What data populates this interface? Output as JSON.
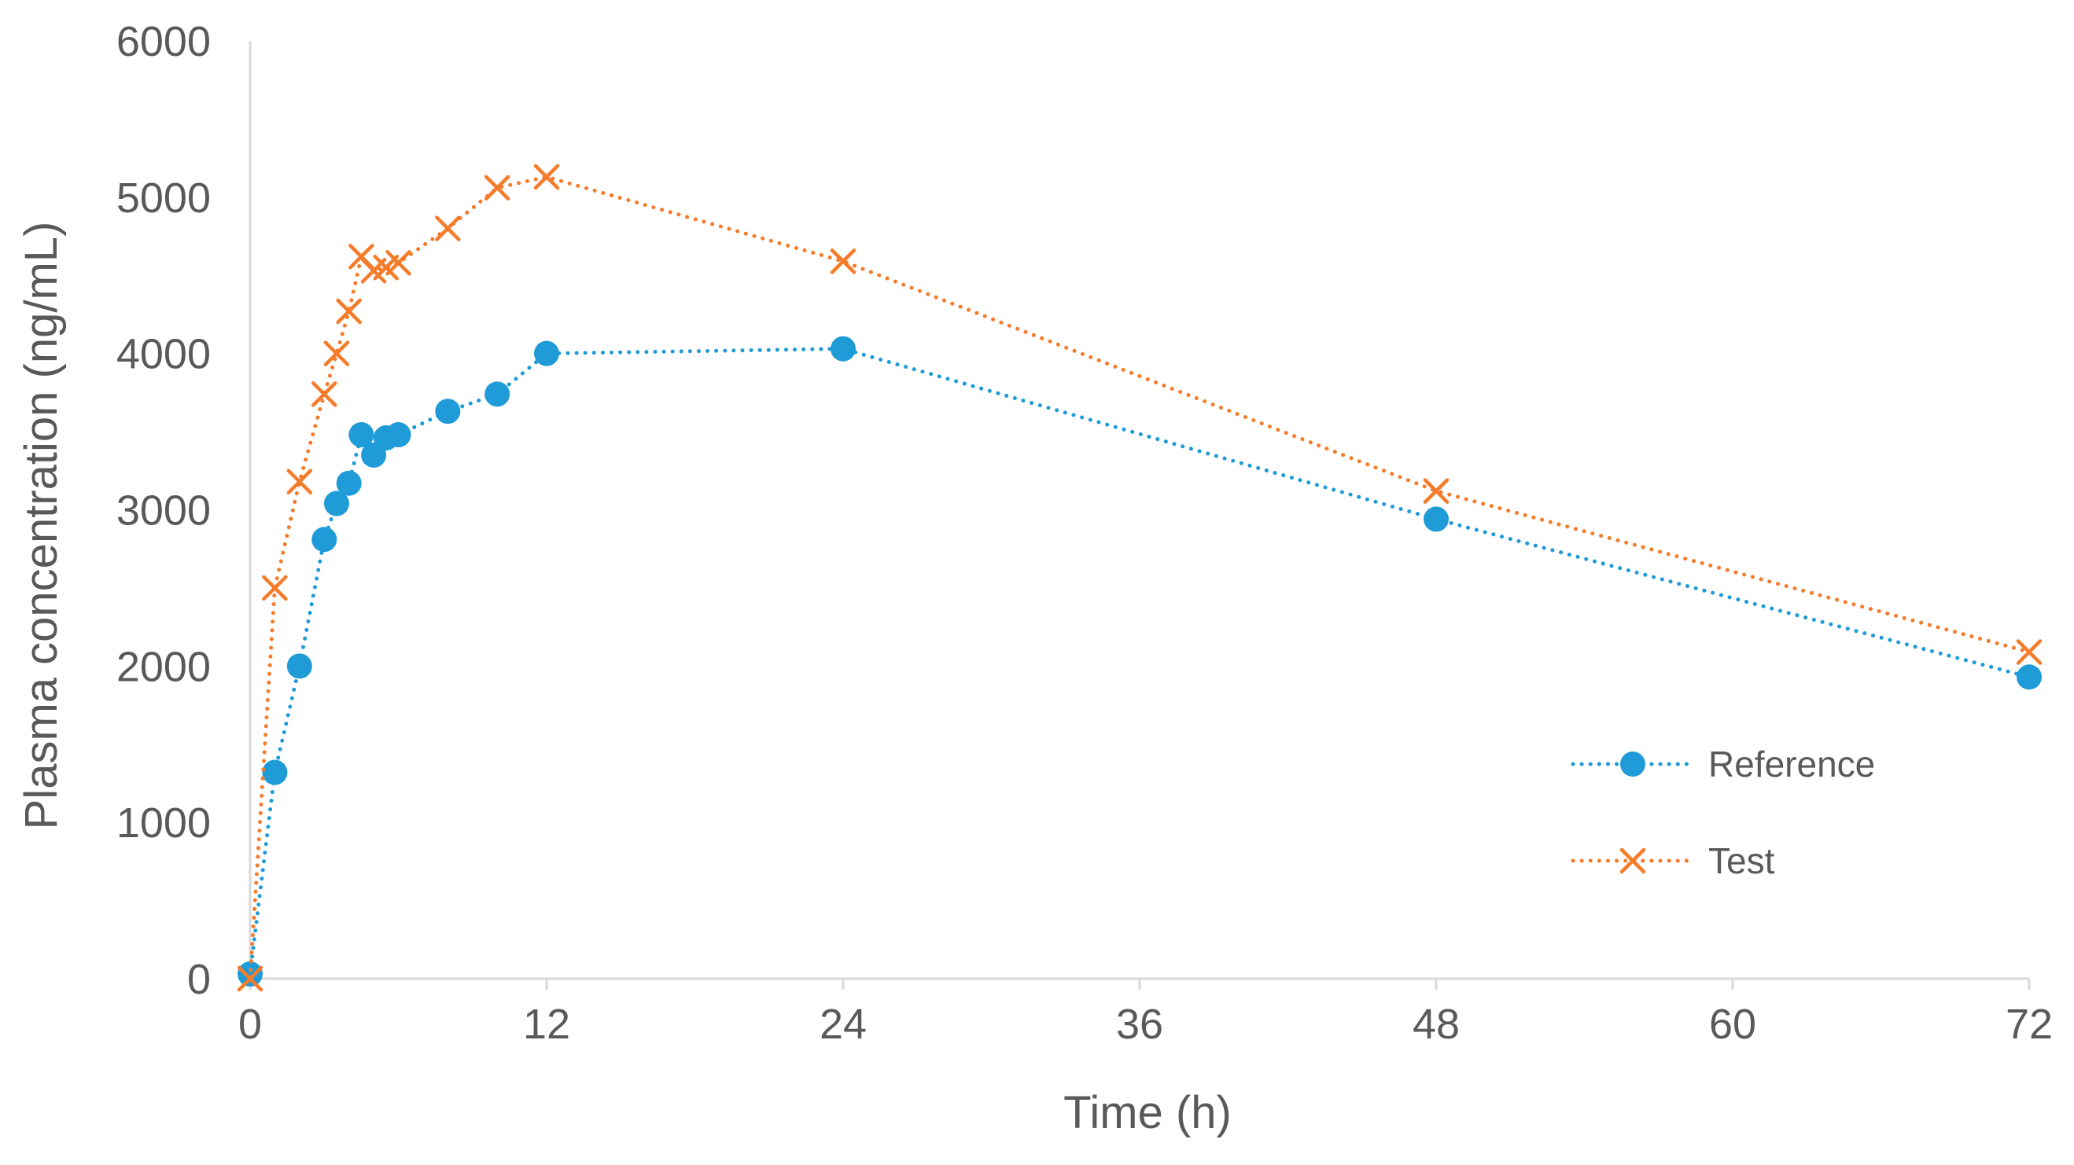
{
  "chart_data": {
    "type": "line",
    "title": "",
    "xlabel": "Time (h)",
    "ylabel": "Plasma concentration (ng/mL)",
    "xlim": [
      0,
      72
    ],
    "ylim": [
      0,
      6000
    ],
    "x_ticks": [
      0,
      12,
      24,
      36,
      48,
      60,
      72
    ],
    "y_ticks": [
      0,
      1000,
      2000,
      3000,
      4000,
      5000,
      6000
    ],
    "grid": false,
    "legend_position": "bottom-right",
    "series": [
      {
        "name": "Reference",
        "color": "#1f9bd7",
        "marker": "circle",
        "line_style": "dotted",
        "x": [
          0,
          1,
          2,
          3,
          3.5,
          4,
          4.5,
          5,
          5.5,
          6,
          8,
          10,
          12,
          24,
          48,
          72
        ],
        "y": [
          30,
          1320,
          2000,
          2810,
          3040,
          3170,
          3480,
          3350,
          3460,
          3480,
          3630,
          3740,
          4000,
          4030,
          2940,
          1930
        ]
      },
      {
        "name": "Test",
        "color": "#f47c2a",
        "marker": "x",
        "line_style": "dotted",
        "x": [
          0,
          1,
          2,
          3,
          3.5,
          4,
          4.5,
          5,
          5.5,
          6,
          8,
          10,
          12,
          24,
          48,
          72
        ],
        "y": [
          0,
          2500,
          3180,
          3740,
          4000,
          4270,
          4620,
          4530,
          4550,
          4580,
          4800,
          5060,
          5130,
          4590,
          3120,
          2090
        ]
      }
    ]
  }
}
